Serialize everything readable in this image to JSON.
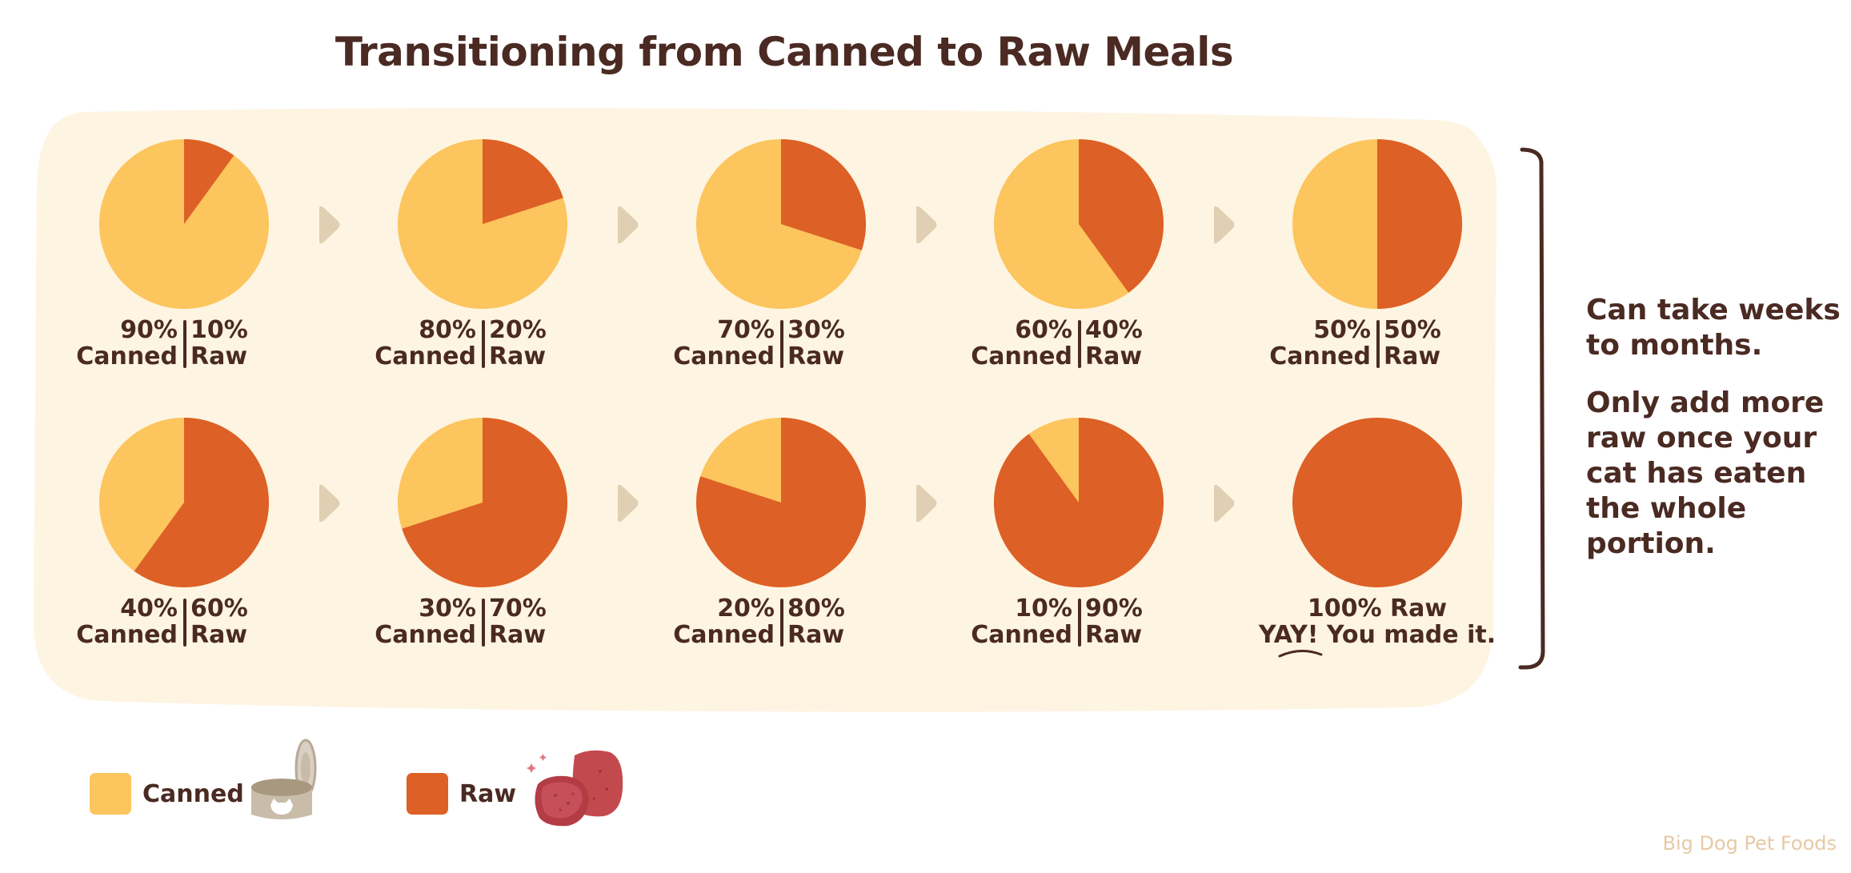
{
  "title": "Transitioning from Canned to Raw Meals",
  "colors": {
    "canned": "#FCC55D",
    "raw": "#DD6026",
    "panel": "#FEF4E2",
    "arrow": "#E0CFB2",
    "text": "#4A2A22",
    "brand": "#E7C9A6"
  },
  "chart_data": {
    "type": "pie",
    "series_names": [
      "Canned",
      "Raw"
    ],
    "stages": [
      {
        "canned": 90,
        "raw": 10,
        "canned_pct": "90%",
        "raw_pct": "10%",
        "canned_word": "Canned",
        "raw_word": "Raw"
      },
      {
        "canned": 80,
        "raw": 20,
        "canned_pct": "80%",
        "raw_pct": "20%",
        "canned_word": "Canned",
        "raw_word": "Raw"
      },
      {
        "canned": 70,
        "raw": 30,
        "canned_pct": "70%",
        "raw_pct": "30%",
        "canned_word": "Canned",
        "raw_word": "Raw"
      },
      {
        "canned": 60,
        "raw": 40,
        "canned_pct": "60%",
        "raw_pct": "40%",
        "canned_word": "Canned",
        "raw_word": "Raw"
      },
      {
        "canned": 50,
        "raw": 50,
        "canned_pct": "50%",
        "raw_pct": "50%",
        "canned_word": "Canned",
        "raw_word": "Raw"
      },
      {
        "canned": 40,
        "raw": 60,
        "canned_pct": "40%",
        "raw_pct": "60%",
        "canned_word": "Canned",
        "raw_word": "Raw"
      },
      {
        "canned": 30,
        "raw": 70,
        "canned_pct": "30%",
        "raw_pct": "70%",
        "canned_word": "Canned",
        "raw_word": "Raw"
      },
      {
        "canned": 20,
        "raw": 80,
        "canned_pct": "20%",
        "raw_pct": "80%",
        "canned_word": "Canned",
        "raw_word": "Raw"
      },
      {
        "canned": 10,
        "raw": 90,
        "canned_pct": "10%",
        "raw_pct": "90%",
        "canned_word": "Canned",
        "raw_word": "Raw"
      },
      {
        "canned": 0,
        "raw": 100,
        "final_line1": "100% Raw",
        "final_line2": "YAY! You made it."
      }
    ]
  },
  "side_note": {
    "line1": "Can take weeks to months.",
    "line2": "Only add more raw once your cat has eaten the whole portion."
  },
  "legend": {
    "canned_label": "Canned",
    "canned_icon": "cat-food-can-icon",
    "raw_label": "Raw",
    "raw_icon": "raw-meat-patties-icon"
  },
  "brand": "Big Dog Pet Foods"
}
